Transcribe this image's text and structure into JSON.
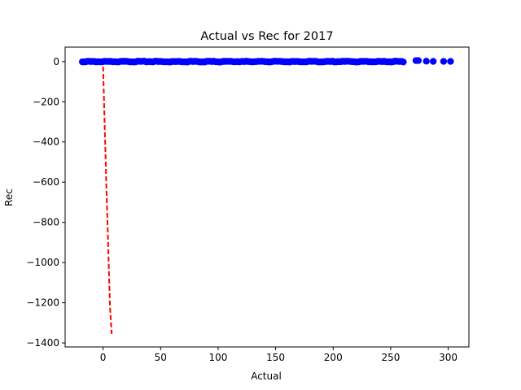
{
  "chart_data": {
    "type": "scatter",
    "title": "Actual vs Rec for 2017",
    "xlabel": "Actual",
    "ylabel": "Rec",
    "xlim": [
      -33,
      318
    ],
    "ylim": [
      -1420,
      72
    ],
    "xticks": [
      0,
      50,
      100,
      150,
      200,
      250,
      300
    ],
    "yticks": [
      0,
      -200,
      -400,
      -600,
      -800,
      -1000,
      -1200,
      -1400
    ],
    "grid": false,
    "legend": "none",
    "colors": {
      "points": "#0000ff",
      "fit_line": "#ff0000"
    },
    "scatter_series": {
      "x_range": [
        -18,
        302
      ],
      "y_value": 0,
      "dense_until": 262,
      "sparse_points": [
        [
          272,
          5
        ],
        [
          274,
          5
        ],
        [
          281,
          2
        ],
        [
          287,
          1
        ],
        [
          296,
          1
        ],
        [
          302,
          1
        ]
      ]
    },
    "fit_line": {
      "style": "dashed",
      "points": [
        [
          0,
          -25
        ],
        [
          0.5,
          -130
        ],
        [
          1.5,
          -340
        ],
        [
          2,
          -440
        ],
        [
          3,
          -650
        ],
        [
          4,
          -830
        ],
        [
          5,
          -1030
        ],
        [
          6,
          -1220
        ],
        [
          7.5,
          -1355
        ]
      ]
    }
  }
}
